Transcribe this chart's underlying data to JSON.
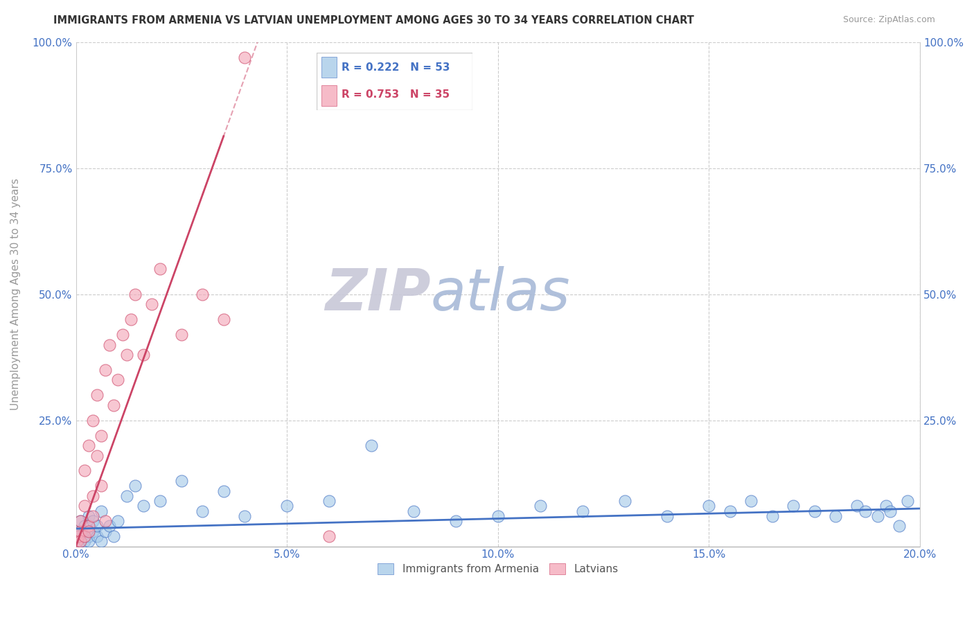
{
  "title": "IMMIGRANTS FROM ARMENIA VS LATVIAN UNEMPLOYMENT AMONG AGES 30 TO 34 YEARS CORRELATION CHART",
  "source": "Source: ZipAtlas.com",
  "xlabel_ticks": [
    "0.0%",
    "5.0%",
    "10.0%",
    "15.0%",
    "20.0%"
  ],
  "xlabel_vals": [
    0.0,
    0.05,
    0.1,
    0.15,
    0.2
  ],
  "ylabel_label": "Unemployment Among Ages 30 to 34 years",
  "legend_blue_R": "R = 0.222",
  "legend_blue_N": "N = 53",
  "legend_pink_R": "R = 0.753",
  "legend_pink_N": "N = 35",
  "blue_color": "#A8CBE8",
  "pink_color": "#F4AABB",
  "blue_line_color": "#4472C4",
  "pink_line_color": "#CC4466",
  "watermark_zip": "ZIP",
  "watermark_atlas": "atlas",
  "watermark_color_zip": "#C8C8D8",
  "watermark_color_atlas": "#A8BAD8",
  "xlim": [
    0.0,
    0.2
  ],
  "ylim": [
    0.0,
    1.0
  ],
  "blue_scatter_x": [
    0.0005,
    0.001,
    0.001,
    0.001,
    0.002,
    0.002,
    0.002,
    0.002,
    0.003,
    0.003,
    0.003,
    0.004,
    0.004,
    0.005,
    0.005,
    0.006,
    0.006,
    0.007,
    0.008,
    0.009,
    0.01,
    0.012,
    0.014,
    0.016,
    0.02,
    0.025,
    0.03,
    0.035,
    0.04,
    0.05,
    0.06,
    0.07,
    0.08,
    0.09,
    0.1,
    0.11,
    0.12,
    0.13,
    0.14,
    0.15,
    0.155,
    0.16,
    0.165,
    0.17,
    0.175,
    0.18,
    0.185,
    0.187,
    0.19,
    0.192,
    0.193,
    0.195,
    0.197
  ],
  "blue_scatter_y": [
    0.02,
    0.01,
    0.03,
    0.05,
    0.01,
    0.04,
    0.02,
    0.03,
    0.02,
    0.06,
    0.01,
    0.03,
    0.05,
    0.02,
    0.04,
    0.01,
    0.07,
    0.03,
    0.04,
    0.02,
    0.05,
    0.1,
    0.12,
    0.08,
    0.09,
    0.13,
    0.07,
    0.11,
    0.06,
    0.08,
    0.09,
    0.2,
    0.07,
    0.05,
    0.06,
    0.08,
    0.07,
    0.09,
    0.06,
    0.08,
    0.07,
    0.09,
    0.06,
    0.08,
    0.07,
    0.06,
    0.08,
    0.07,
    0.06,
    0.08,
    0.07,
    0.04,
    0.09
  ],
  "pink_scatter_x": [
    0.0003,
    0.0005,
    0.001,
    0.001,
    0.001,
    0.002,
    0.002,
    0.002,
    0.003,
    0.003,
    0.003,
    0.004,
    0.004,
    0.004,
    0.005,
    0.005,
    0.006,
    0.006,
    0.007,
    0.007,
    0.008,
    0.009,
    0.01,
    0.011,
    0.012,
    0.013,
    0.014,
    0.016,
    0.018,
    0.02,
    0.025,
    0.03,
    0.035,
    0.04,
    0.06
  ],
  "pink_scatter_y": [
    0.01,
    0.02,
    0.03,
    0.05,
    0.01,
    0.08,
    0.02,
    0.15,
    0.04,
    0.2,
    0.03,
    0.25,
    0.1,
    0.06,
    0.18,
    0.3,
    0.22,
    0.12,
    0.35,
    0.05,
    0.4,
    0.28,
    0.33,
    0.42,
    0.38,
    0.45,
    0.5,
    0.38,
    0.48,
    0.55,
    0.42,
    0.5,
    0.45,
    0.97,
    0.02
  ],
  "pink_line_x0": 0.0,
  "pink_line_x1": 0.043,
  "pink_line_y0": 0.0,
  "pink_line_y1": 1.0,
  "blue_line_x0": 0.0,
  "blue_line_x1": 0.2,
  "blue_line_y0": 0.035,
  "blue_line_y1": 0.075
}
